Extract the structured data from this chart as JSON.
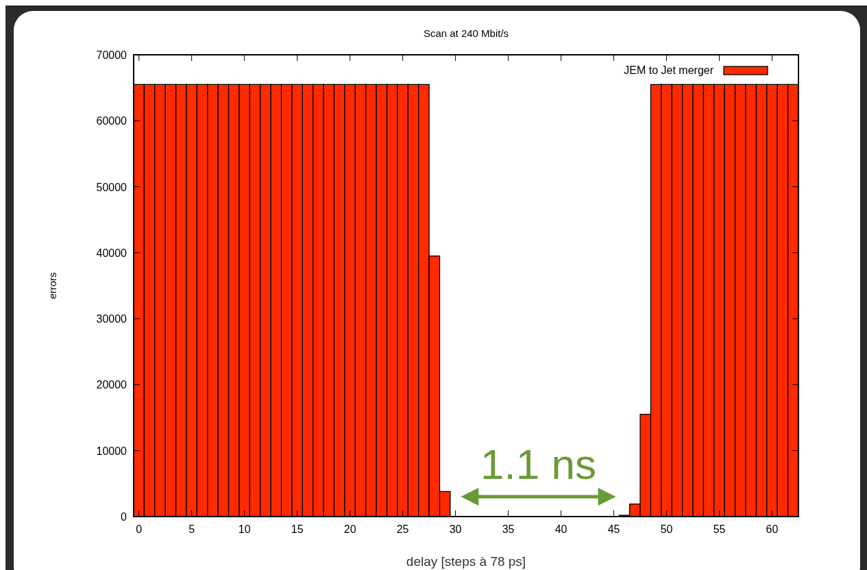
{
  "chart_data": {
    "type": "histogram",
    "title": "Scan at 240 Mbit/s",
    "xlabel": "delay [steps à 78 ps]",
    "ylabel": "errors",
    "bins": [
      -0.5,
      0.5,
      1.5,
      2.5,
      3.5,
      4.5,
      5.5,
      6.5,
      7.5,
      8.5,
      9.5,
      10.5,
      11.5,
      12.5,
      13.5,
      14.5,
      15.5,
      16.5,
      17.5,
      18.5,
      19.5,
      20.5,
      21.5,
      22.5,
      23.5,
      24.5,
      25.5,
      26.5,
      27.5,
      28.5,
      29.5,
      30.5,
      31.5,
      32.5,
      33.5,
      34.5,
      35.5,
      36.5,
      37.5,
      38.5,
      39.5,
      40.5,
      41.5,
      42.5,
      43.5,
      44.5,
      45.5,
      46.5,
      47.5,
      48.5,
      49.5,
      50.5,
      51.5,
      52.5,
      53.5,
      54.5,
      55.5,
      56.5,
      57.5,
      58.5,
      59.5,
      60.5,
      61.5,
      62.5
    ],
    "series": [
      {
        "name": "JEM to Jet merger",
        "color": "#ff2a00",
        "values": [
          65500,
          65500,
          65500,
          65500,
          65500,
          65500,
          65500,
          65500,
          65500,
          65500,
          65500,
          65500,
          65500,
          65500,
          65500,
          65500,
          65500,
          65500,
          65500,
          65500,
          65500,
          65500,
          65500,
          65500,
          65500,
          65500,
          65500,
          65500,
          39500,
          3800,
          0,
          0,
          0,
          0,
          0,
          0,
          0,
          0,
          0,
          0,
          0,
          0,
          0,
          0,
          0,
          0,
          200,
          1900,
          15500,
          65500,
          65500,
          65500,
          65500,
          65500,
          65500,
          65500,
          65500,
          65500,
          65500,
          65500,
          65500,
          65500,
          65500
        ]
      }
    ],
    "xlim": [
      -0.5,
      62.5
    ],
    "xticks": [
      0,
      5,
      10,
      15,
      20,
      25,
      30,
      35,
      40,
      45,
      50,
      55,
      60
    ],
    "ylim": [
      0,
      70000
    ],
    "yticks": [
      0,
      10000,
      20000,
      30000,
      40000,
      50000,
      60000,
      70000
    ],
    "legend": "top right",
    "annotations": [
      "1.1 ns"
    ]
  }
}
